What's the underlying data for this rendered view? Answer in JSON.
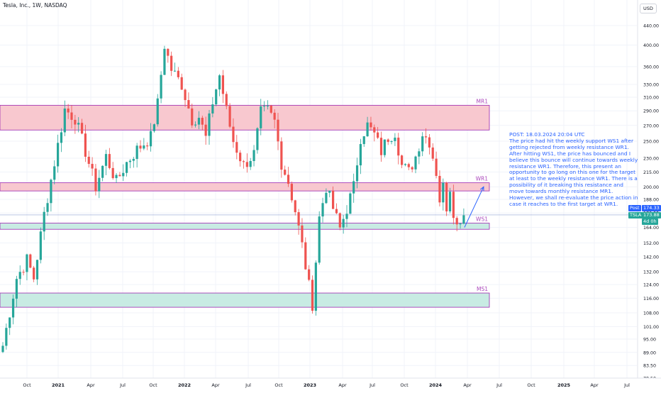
{
  "header": {
    "title": "Tesla, Inc., 1W, NASDAQ",
    "currency": "USD"
  },
  "post": {
    "text": "POST: 18.03.2024 20:04 UTC\nThe price had hit the weekly support WS1 after getting rejected from weekly resistance WR1. After hitting WS1, the price has bounced and I believe this bounce will continue towards weekly resistance WR1. Therefore, this present an opportunity to go long on this one for the target at least to the weekly resistance WR1. There is a possibility of it breaking this resistance and move towards monthly resistance MR1. However, we shall re-evaluate the price action in case it reaches to the first target at WR1."
  },
  "price_labels": {
    "post_label": "Post",
    "post_value": "174.33",
    "ticker_label": "TSLA",
    "ticker_value": "173.88",
    "countdown": "4d 0h"
  },
  "colors": {
    "up": "#26a69a",
    "down": "#ef5350",
    "zone_red": "#f8c8cf",
    "zone_green": "#c8ebe3",
    "zone_border": "#9c27b0",
    "zone_label": "#ab47bc",
    "arrow": "#2962ff",
    "post_line": "#2962ff"
  },
  "chart_data": {
    "type": "candlestick",
    "symbol": "Tesla, Inc.",
    "interval": "1W",
    "exchange": "NASDAQ",
    "y_scale": "log",
    "ylim": [
      78.5,
      440
    ],
    "y_ticks": [
      440,
      400,
      360,
      330,
      310,
      290,
      270,
      250,
      230,
      215,
      200,
      188,
      176,
      164,
      152,
      142,
      132,
      124,
      116,
      108,
      101,
      95,
      89,
      83.5,
      78.5
    ],
    "y_tick_labels": [
      "440.00",
      "400.00",
      "360.00",
      "330.00",
      "310.00",
      "290.00",
      "270.00",
      "250.00",
      "230.00",
      "215.00",
      "200.00",
      "188.00",
      "176.00",
      "164.00",
      "152.00",
      "142.00",
      "132.00",
      "124.00",
      "116.00",
      "108.00",
      "101.00",
      "95.00",
      "89.00",
      "83.50",
      "78.50"
    ],
    "x_labels": [
      "Oct",
      "2021",
      "Apr",
      "Jul",
      "Oct",
      "2022",
      "Apr",
      "Jul",
      "Oct",
      "2023",
      "Apr",
      "Jul",
      "Oct",
      "2024",
      "Apr",
      "Jul",
      "Oct",
      "2025",
      "Apr",
      "Jul"
    ],
    "anchors": [
      {
        "week": 0,
        "price": 92
      },
      {
        "week": 4,
        "price": 128
      },
      {
        "week": 7,
        "price": 140
      },
      {
        "week": 9,
        "price": 128
      },
      {
        "week": 12,
        "price": 175
      },
      {
        "week": 16,
        "price": 245
      },
      {
        "week": 18,
        "price": 292
      },
      {
        "week": 21,
        "price": 280
      },
      {
        "week": 24,
        "price": 238
      },
      {
        "week": 27,
        "price": 200
      },
      {
        "week": 30,
        "price": 232
      },
      {
        "week": 33,
        "price": 205
      },
      {
        "week": 36,
        "price": 225
      },
      {
        "week": 39,
        "price": 240
      },
      {
        "week": 43,
        "price": 255
      },
      {
        "week": 45,
        "price": 300
      },
      {
        "week": 47,
        "price": 400
      },
      {
        "week": 49,
        "price": 355
      },
      {
        "week": 52,
        "price": 330
      },
      {
        "week": 55,
        "price": 278
      },
      {
        "week": 57,
        "price": 282
      },
      {
        "week": 59,
        "price": 254
      },
      {
        "week": 61,
        "price": 303
      },
      {
        "week": 63,
        "price": 345
      },
      {
        "week": 65,
        "price": 290
      },
      {
        "week": 67,
        "price": 250
      },
      {
        "week": 70,
        "price": 222
      },
      {
        "week": 73,
        "price": 235
      },
      {
        "week": 75,
        "price": 287
      },
      {
        "week": 77,
        "price": 290
      },
      {
        "week": 79,
        "price": 275
      },
      {
        "week": 81,
        "price": 225
      },
      {
        "week": 83,
        "price": 205
      },
      {
        "week": 85,
        "price": 178
      },
      {
        "week": 87,
        "price": 150
      },
      {
        "week": 89,
        "price": 123
      },
      {
        "week": 90,
        "price": 113
      },
      {
        "week": 92,
        "price": 172
      },
      {
        "week": 94,
        "price": 200
      },
      {
        "week": 96,
        "price": 180
      },
      {
        "week": 98,
        "price": 163
      },
      {
        "week": 100,
        "price": 180
      },
      {
        "week": 102,
        "price": 200
      },
      {
        "week": 104,
        "price": 255
      },
      {
        "week": 106,
        "price": 270
      },
      {
        "week": 108,
        "price": 258
      },
      {
        "week": 110,
        "price": 238
      },
      {
        "week": 112,
        "price": 255
      },
      {
        "week": 114,
        "price": 262
      },
      {
        "week": 116,
        "price": 222
      },
      {
        "week": 118,
        "price": 215
      },
      {
        "week": 120,
        "price": 232
      },
      {
        "week": 122,
        "price": 260
      },
      {
        "week": 124,
        "price": 250
      },
      {
        "week": 126,
        "price": 215
      },
      {
        "week": 127,
        "price": 188
      },
      {
        "week": 128,
        "price": 200
      },
      {
        "week": 129,
        "price": 182
      },
      {
        "week": 130,
        "price": 200
      },
      {
        "week": 131,
        "price": 178
      },
      {
        "week": 132,
        "price": 165
      },
      {
        "week": 133,
        "price": 172
      },
      {
        "week": 134,
        "price": 174
      }
    ],
    "zones": [
      {
        "label": "MR1",
        "top": 298,
        "bottom": 264,
        "color": "#f8c8cf"
      },
      {
        "label": "WR1",
        "top": 204,
        "bottom": 196,
        "color": "#f8c8cf"
      },
      {
        "label": "WS1",
        "top": 167.5,
        "bottom": 162.5,
        "color": "#c8ebe3"
      },
      {
        "label": "MS1",
        "top": 119,
        "bottom": 111,
        "color": "#c8ebe3"
      }
    ],
    "post_price": 174.33,
    "last_price": 173.88,
    "projection": {
      "from": 164,
      "to": 200
    },
    "price_scale_labels": [
      {
        "label": "Post",
        "value": 174.33
      },
      {
        "label": "TSLA",
        "value": 173.88
      }
    ]
  }
}
